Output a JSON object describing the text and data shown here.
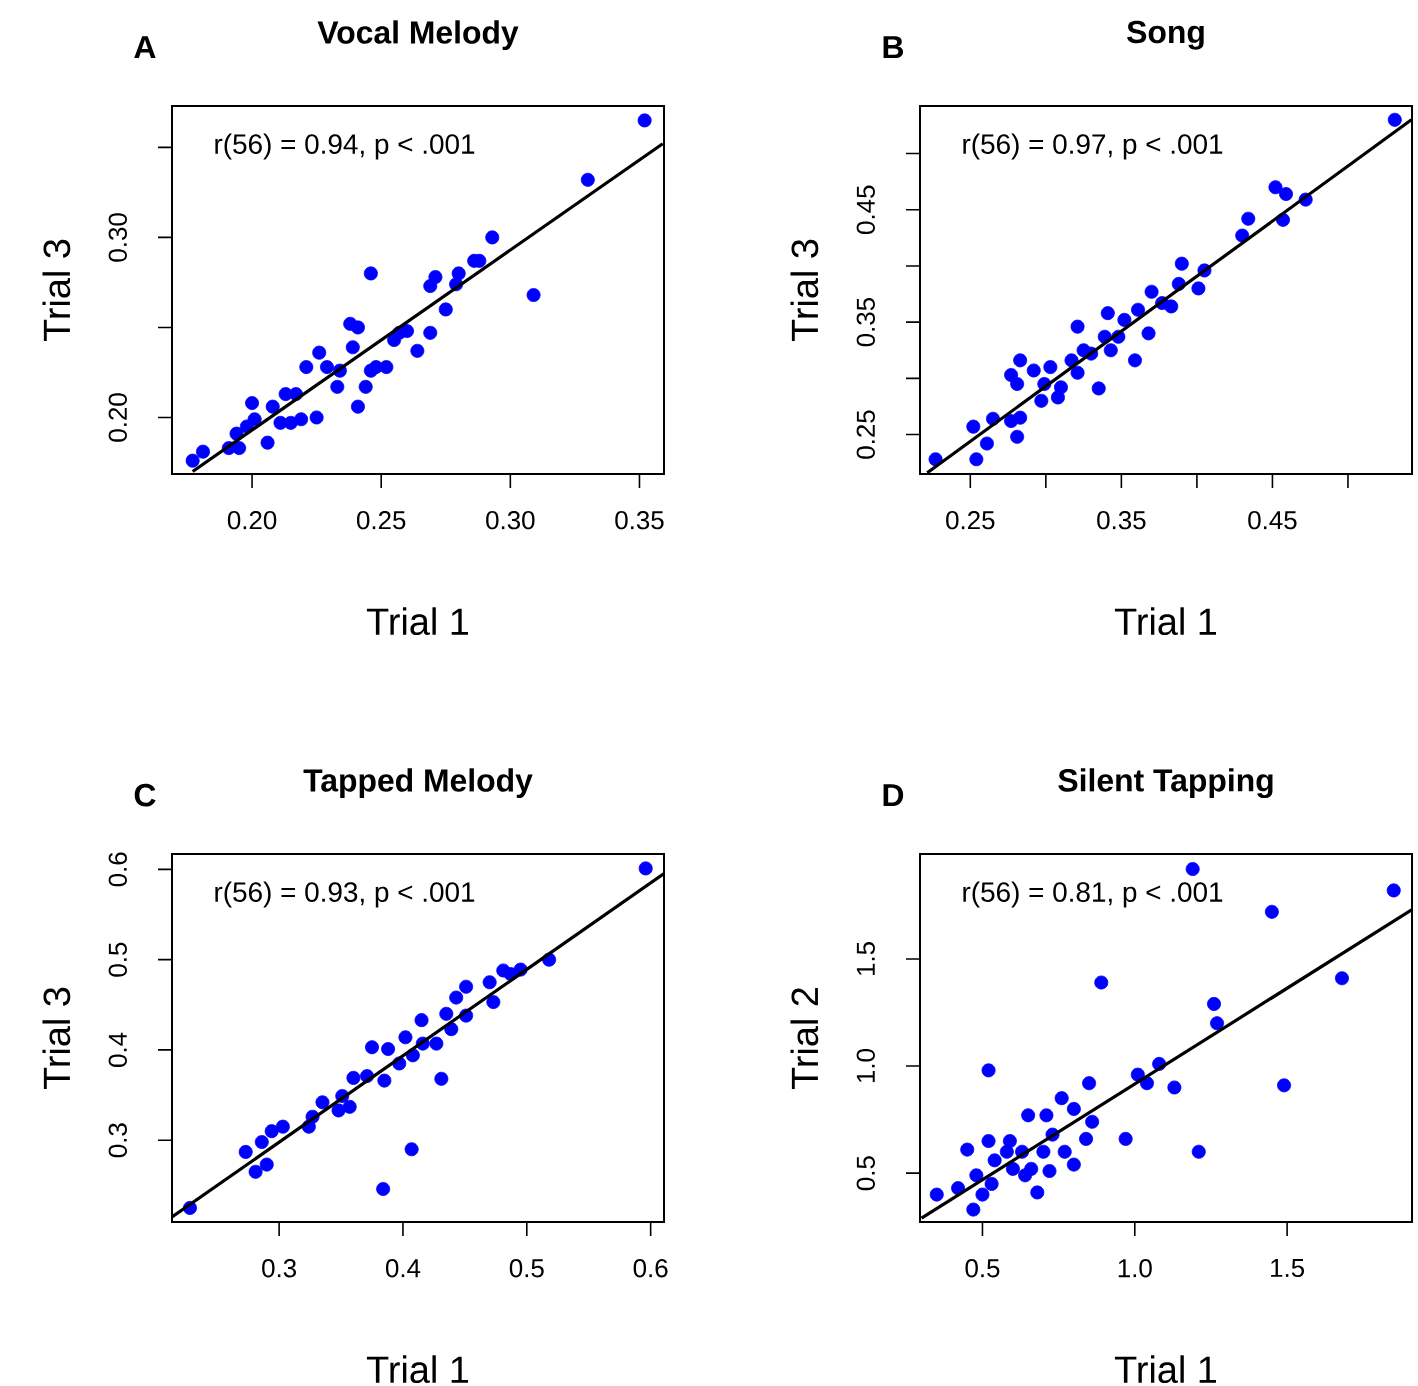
{
  "chart_data": [
    {
      "type": "scatter",
      "title": "Vocal Melody",
      "xlabel": "Trial 1",
      "ylabel": "Trial 3",
      "annotations": [
        "A",
        "r(56) = 0.94, p < .001"
      ],
      "xlim": [
        0.169,
        0.3595
      ],
      "ylim": [
        0.1686,
        0.373
      ],
      "xticks": [
        {
          "value": 0.2,
          "label": "0.20"
        },
        0.25,
        {
          "value": 0.3,
          "label": "0.30"
        },
        0.35
      ],
      "yticks": [
        {
          "value": 0.2,
          "label": "0.20"
        },
        {
          "value": 0.25,
          "label": null
        },
        {
          "value": 0.3,
          "label": "0.30"
        },
        {
          "value": 0.35,
          "label": null
        }
      ],
      "series": [
        {
          "marker": "circle",
          "color": "#0000ff",
          "x": [
            0.177,
            0.181,
            0.191,
            0.195,
            0.194,
            0.198,
            0.2,
            0.201,
            0.206,
            0.208,
            0.211,
            0.213,
            0.215,
            0.217,
            0.219,
            0.221,
            0.225,
            0.226,
            0.229,
            0.233,
            0.234,
            0.238,
            0.241,
            0.239,
            0.241,
            0.244,
            0.246,
            0.246,
            0.248,
            0.252,
            0.255,
            0.257,
            0.26,
            0.264,
            0.269,
            0.269,
            0.271,
            0.275,
            0.279,
            0.28,
            0.286,
            0.288,
            0.293,
            0.309,
            0.33,
            0.352
          ],
          "values": [
            0.176,
            0.181,
            0.183,
            0.183,
            0.191,
            0.195,
            0.208,
            0.199,
            0.186,
            0.206,
            0.197,
            0.213,
            0.197,
            0.213,
            0.199,
            0.228,
            0.2,
            0.236,
            0.228,
            0.217,
            0.226,
            0.252,
            0.25,
            0.239,
            0.206,
            0.217,
            0.226,
            0.28,
            0.228,
            0.228,
            0.243,
            0.247,
            0.248,
            0.237,
            0.247,
            0.273,
            0.278,
            0.26,
            0.274,
            0.28,
            0.287,
            0.287,
            0.3,
            0.268,
            0.332,
            0.365
          ]
        },
        {
          "type": "line",
          "color": "#000000",
          "x": [
            0.177,
            0.359
          ],
          "values": [
            0.17,
            0.352
          ]
        }
      ]
    },
    {
      "type": "scatter",
      "title": "Song",
      "xlabel": "Trial 1",
      "ylabel": "Trial 3",
      "annotations": [
        "B",
        "r(56) = 0.97, p < .001"
      ],
      "xlim": [
        0.2167,
        0.5424
      ],
      "ylim": [
        0.2149,
        0.5423
      ],
      "xticks": [
        0.25,
        {
          "value": 0.3,
          "label": null
        },
        0.35,
        {
          "value": 0.4,
          "label": null
        },
        0.45,
        {
          "value": 0.5,
          "label": null
        }
      ],
      "yticks": [
        0.25,
        {
          "value": 0.3,
          "label": null
        },
        0.35,
        {
          "value": 0.4,
          "label": null
        },
        0.45,
        {
          "value": 0.5,
          "label": null
        }
      ],
      "series": [
        {
          "marker": "circle",
          "color": "#0000ff",
          "x": [
            0.227,
            0.252,
            0.254,
            0.261,
            0.265,
            0.277,
            0.281,
            0.283,
            0.277,
            0.283,
            0.281,
            0.292,
            0.297,
            0.299,
            0.303,
            0.308,
            0.31,
            0.317,
            0.321,
            0.325,
            0.321,
            0.33,
            0.335,
            0.339,
            0.341,
            0.343,
            0.348,
            0.352,
            0.359,
            0.361,
            0.368,
            0.37,
            0.377,
            0.383,
            0.388,
            0.39,
            0.401,
            0.405,
            0.43,
            0.434,
            0.452,
            0.457,
            0.459,
            0.472,
            0.531
          ],
          "values": [
            0.228,
            0.257,
            0.228,
            0.242,
            0.264,
            0.262,
            0.248,
            0.265,
            0.303,
            0.316,
            0.295,
            0.307,
            0.28,
            0.295,
            0.31,
            0.283,
            0.292,
            0.316,
            0.305,
            0.325,
            0.346,
            0.322,
            0.291,
            0.337,
            0.358,
            0.325,
            0.337,
            0.352,
            0.316,
            0.361,
            0.34,
            0.377,
            0.367,
            0.364,
            0.384,
            0.402,
            0.38,
            0.396,
            0.427,
            0.442,
            0.47,
            0.441,
            0.464,
            0.459,
            0.53
          ]
        },
        {
          "type": "line",
          "color": "#000000",
          "x": [
            0.2215,
            0.542
          ],
          "values": [
            0.216,
            0.53
          ]
        }
      ]
    },
    {
      "type": "scatter",
      "title": "Tapped Melody",
      "xlabel": "Trial 1",
      "ylabel": "Trial 3",
      "annotations": [
        "C",
        "r(56) = 0.93, p < .001"
      ],
      "xlim": [
        0.2135,
        0.6108
      ],
      "ylim": [
        0.2094,
        0.617
      ],
      "xticks": [
        0.3,
        0.4,
        0.5,
        0.6
      ],
      "yticks": [
        0.3,
        0.4,
        0.5,
        0.6
      ],
      "series": [
        {
          "marker": "circle",
          "color": "#0000ff",
          "x": [
            0.228,
            0.273,
            0.281,
            0.29,
            0.286,
            0.294,
            0.303,
            0.324,
            0.327,
            0.335,
            0.348,
            0.351,
            0.357,
            0.36,
            0.371,
            0.375,
            0.384,
            0.385,
            0.388,
            0.397,
            0.402,
            0.407,
            0.408,
            0.415,
            0.416,
            0.427,
            0.431,
            0.435,
            0.439,
            0.443,
            0.451,
            0.451,
            0.47,
            0.473,
            0.481,
            0.487,
            0.495,
            0.518,
            0.596
          ],
          "values": [
            0.225,
            0.287,
            0.265,
            0.273,
            0.298,
            0.31,
            0.315,
            0.315,
            0.326,
            0.342,
            0.333,
            0.349,
            0.337,
            0.369,
            0.371,
            0.403,
            0.246,
            0.366,
            0.401,
            0.385,
            0.414,
            0.29,
            0.394,
            0.433,
            0.407,
            0.407,
            0.368,
            0.44,
            0.423,
            0.458,
            0.47,
            0.438,
            0.475,
            0.453,
            0.488,
            0.484,
            0.489,
            0.5,
            0.601
          ]
        },
        {
          "type": "line",
          "color": "#000000",
          "x": [
            0.2135,
            0.6105
          ],
          "values": [
            0.215,
            0.595
          ]
        }
      ]
    },
    {
      "type": "scatter",
      "title": "Silent Tapping",
      "xlabel": "Trial 1",
      "ylabel": "Trial 2",
      "annotations": [
        "D",
        "r(56) = 0.81, p < .001"
      ],
      "xlim": [
        0.295,
        1.91
      ],
      "ylim": [
        0.272,
        1.99
      ],
      "xticks": [
        0.5,
        {
          "value": 1.0,
          "label": "1.0"
        },
        1.5
      ],
      "yticks": [
        0.5,
        {
          "value": 1.0,
          "label": "1.0"
        },
        1.5
      ],
      "series": [
        {
          "marker": "circle",
          "color": "#0000ff",
          "x": [
            0.35,
            0.42,
            0.45,
            0.47,
            0.48,
            0.5,
            0.52,
            0.52,
            0.53,
            0.54,
            0.58,
            0.59,
            0.6,
            0.63,
            0.64,
            0.65,
            0.66,
            0.68,
            0.7,
            0.71,
            0.72,
            0.73,
            0.76,
            0.77,
            0.8,
            0.8,
            0.84,
            0.85,
            0.86,
            0.89,
            0.97,
            1.01,
            1.04,
            1.08,
            1.13,
            1.19,
            1.21,
            1.26,
            1.27,
            1.45,
            1.49,
            1.68,
            1.85
          ],
          "values": [
            0.4,
            0.43,
            0.61,
            0.33,
            0.49,
            0.4,
            0.98,
            0.65,
            0.45,
            0.56,
            0.6,
            0.65,
            0.52,
            0.6,
            0.49,
            0.77,
            0.52,
            0.41,
            0.6,
            0.77,
            0.51,
            0.68,
            0.85,
            0.6,
            0.54,
            0.8,
            0.66,
            0.92,
            0.74,
            1.39,
            0.66,
            0.96,
            0.92,
            1.01,
            0.9,
            1.92,
            0.6,
            1.29,
            1.2,
            1.72,
            0.91,
            1.41,
            1.82
          ]
        },
        {
          "type": "line",
          "color": "#000000",
          "x": [
            0.3,
            1.91
          ],
          "values": [
            0.29,
            1.73
          ]
        }
      ]
    }
  ]
}
